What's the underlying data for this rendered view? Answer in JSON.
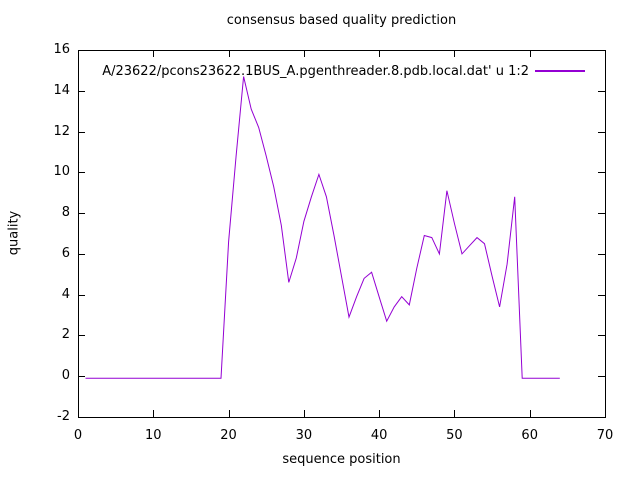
{
  "title": "consensus based quality prediction",
  "legend": {
    "label": "A/23622/pcons23622.1BUS_A.pgenthreader.8.pdb.local.dat' u 1:2",
    "line_color": "#9400d3"
  },
  "axes": {
    "x_label": "sequence position",
    "y_label": "quality"
  },
  "colors": {
    "line": "#9400d3",
    "axis": "#000000",
    "background": "#ffffff",
    "text": "#000000"
  },
  "chart_data": {
    "type": "line",
    "title": "consensus based quality prediction",
    "xlabel": "sequence position",
    "ylabel": "quality",
    "xlim": [
      0,
      70
    ],
    "ylim": [
      -2,
      16
    ],
    "x_ticks": [
      0,
      10,
      20,
      30,
      40,
      50,
      60,
      70
    ],
    "y_ticks": [
      16,
      14,
      12,
      10,
      8,
      6,
      4,
      2,
      0,
      -2
    ],
    "grid": false,
    "legend_position": "top-right",
    "series": [
      {
        "name": "A/23622/pcons23622.1BUS_A.pgenthreader.8.pdb.local.dat' u 1:2",
        "color": "#9400d3",
        "x": [
          1,
          2,
          3,
          4,
          5,
          6,
          7,
          8,
          9,
          10,
          11,
          12,
          13,
          14,
          15,
          16,
          17,
          18,
          19,
          20,
          21,
          22,
          23,
          24,
          25,
          26,
          27,
          28,
          29,
          30,
          31,
          32,
          33,
          34,
          35,
          36,
          37,
          38,
          39,
          40,
          41,
          42,
          43,
          44,
          45,
          46,
          47,
          48,
          49,
          50,
          51,
          52,
          53,
          54,
          55,
          56,
          57,
          58,
          59,
          60,
          61,
          62,
          63,
          64
        ],
        "y": [
          -0.1,
          -0.1,
          -0.1,
          -0.1,
          -0.1,
          -0.1,
          -0.1,
          -0.1,
          -0.1,
          -0.1,
          -0.1,
          -0.1,
          -0.1,
          -0.1,
          -0.1,
          -0.1,
          -0.1,
          -0.1,
          -0.1,
          6.6,
          10.8,
          14.7,
          13.1,
          12.2,
          10.8,
          9.3,
          7.4,
          4.6,
          5.8,
          7.6,
          8.8,
          9.9,
          8.8,
          6.9,
          4.9,
          2.9,
          3.9,
          4.8,
          5.1,
          3.9,
          2.7,
          3.4,
          3.9,
          3.5,
          5.3,
          6.9,
          6.8,
          6.0,
          9.1,
          7.5,
          6.0,
          6.4,
          6.8,
          6.5,
          4.9,
          3.4,
          5.5,
          8.8,
          -0.1,
          -0.1,
          -0.1,
          -0.1,
          -0.1,
          -0.1
        ]
      }
    ]
  }
}
